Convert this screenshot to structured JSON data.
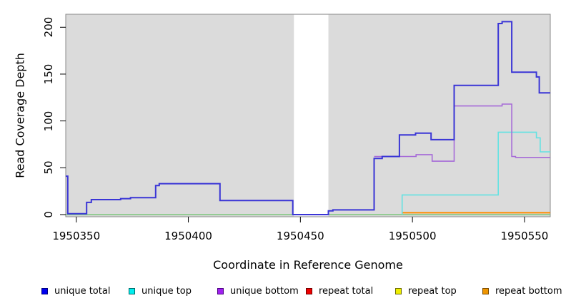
{
  "chart_data": {
    "type": "line",
    "subtype": "step-coverage-plot",
    "title": "",
    "xlabel": "Coordinate in Reference Genome",
    "ylabel": "Read Coverage Depth",
    "x_ticks": [
      1950350,
      1950400,
      1950450,
      1950500,
      1950550
    ],
    "y_ticks": [
      0,
      50,
      100,
      150,
      200
    ],
    "xlim": [
      1950345.3,
      1950561.5
    ],
    "ylim": [
      -2.3,
      213.9
    ],
    "grid": false,
    "panel_bg": "#dbdbdb",
    "panel_border": "#8a8a8a",
    "masked_region": {
      "x_start": 1950447.1,
      "x_end": 1950462.5,
      "color": "#ffffff"
    },
    "baseline": {
      "name": "zero baseline",
      "color": "#7dc87d",
      "width": 1.5,
      "value": 0
    },
    "series": [
      {
        "name": "repeat total",
        "color": "#e00000",
        "width": 1.6,
        "points": []
      },
      {
        "name": "repeat top",
        "color": "#e8e800",
        "width": 1.6,
        "points": []
      },
      {
        "name": "repeat bottom",
        "color": "#ff8c00",
        "width": 2,
        "points": [
          [
            1950495.4,
            2
          ]
        ]
      },
      {
        "name": "unique top",
        "color": "#63e2e2",
        "width": 1.6,
        "points": [
          [
            1950495.4,
            0
          ],
          [
            1950495.4,
            21
          ],
          [
            1950538.3,
            88
          ],
          [
            1950555.3,
            82
          ],
          [
            1950557,
            67
          ]
        ]
      },
      {
        "name": "unique bottom",
        "color": "#a66bd8",
        "width": 1.6,
        "points": [
          [
            1950482.9,
            62
          ],
          [
            1950501.6,
            64
          ],
          [
            1950508.8,
            57
          ],
          [
            1950518.6,
            116
          ],
          [
            1950540,
            118
          ],
          [
            1950544.3,
            62
          ],
          [
            1950546,
            61
          ]
        ]
      },
      {
        "name": "unique total",
        "color": "#3a35d6",
        "width": 2,
        "points": [
          [
            1950345.3,
            41
          ],
          [
            1950346.2,
            1
          ],
          [
            1950354.6,
            13
          ],
          [
            1950356.7,
            16
          ],
          [
            1950369.8,
            17
          ],
          [
            1950374.2,
            18
          ],
          [
            1950385.4,
            31
          ],
          [
            1950387,
            33
          ],
          [
            1950414.1,
            15
          ],
          [
            1950446.6,
            0
          ],
          [
            1950462.5,
            4
          ],
          [
            1950464.5,
            5
          ],
          [
            1950482.9,
            60
          ],
          [
            1950486.5,
            62
          ],
          [
            1950494.2,
            85
          ],
          [
            1950501.4,
            87
          ],
          [
            1950508.3,
            80
          ],
          [
            1950518.6,
            138
          ],
          [
            1950538.3,
            204
          ],
          [
            1950540,
            206
          ],
          [
            1950544.3,
            152
          ],
          [
            1950555.3,
            147
          ],
          [
            1950556.6,
            130
          ]
        ]
      }
    ],
    "legend": [
      {
        "label": "unique total",
        "fill": "#0000ee",
        "border": "#000080"
      },
      {
        "label": "unique top",
        "fill": "#00eeee",
        "border": "#006868"
      },
      {
        "label": "unique bottom",
        "fill": "#a020f0",
        "border": "#4b0082"
      },
      {
        "label": "repeat total",
        "fill": "#ee0000",
        "border": "#700000"
      },
      {
        "label": "repeat top",
        "fill": "#eeee00",
        "border": "#6b6b00"
      },
      {
        "label": "repeat bottom",
        "fill": "#ee9500",
        "border": "#7a4a00"
      }
    ],
    "legend_position": "bottom"
  }
}
